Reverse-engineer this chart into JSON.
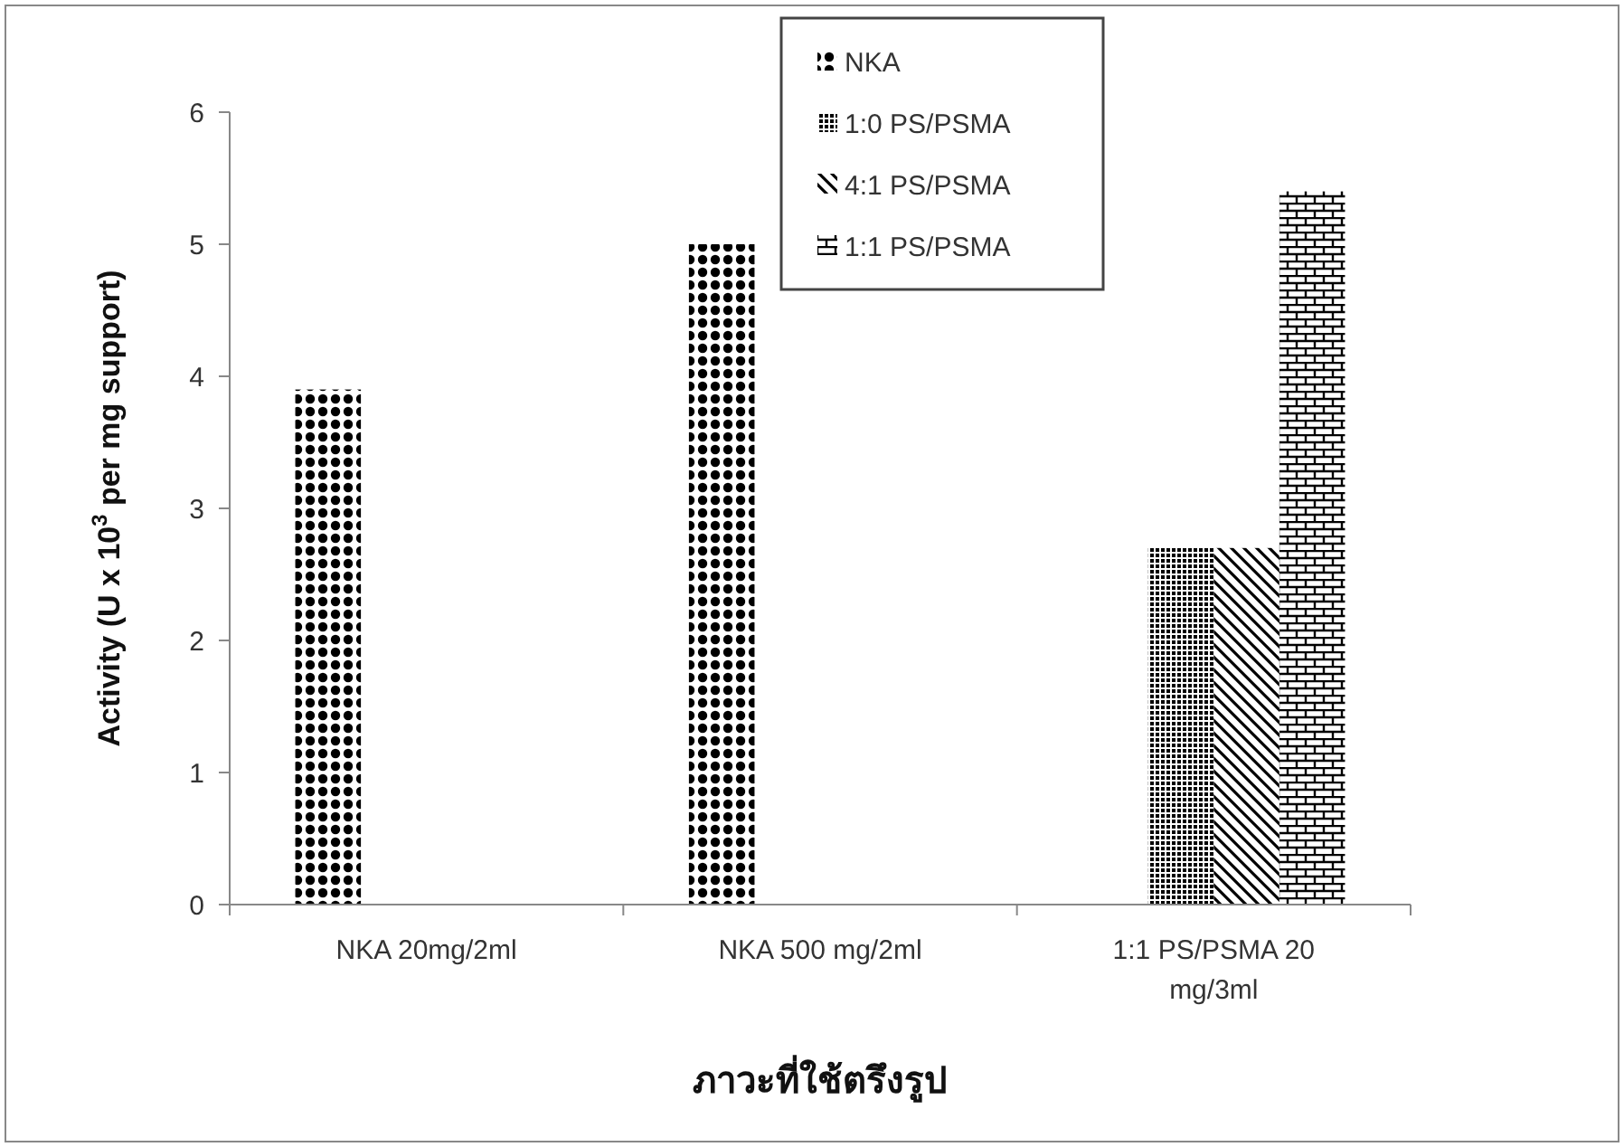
{
  "chart_data": {
    "type": "bar",
    "xlabel": "ภาวะที่ใช้ตรึงรูป",
    "ylabel": "Activity (U x 10$^{3}$ per mg support)",
    "categories": [
      "NKA 20mg/2ml",
      "NKA 500 mg/2ml",
      "1:1 PS/PSMA 20 mg/3ml"
    ],
    "series": [
      {
        "name": "NKA",
        "color": "#000000",
        "values": [
          3.9,
          5.0,
          null
        ]
      },
      {
        "name": "1:0 PS/PSMA",
        "color": "#000000",
        "values": [
          null,
          null,
          2.7
        ]
      },
      {
        "name": "4:1 PS/PSMA",
        "color": "#000000",
        "values": [
          null,
          null,
          2.7
        ]
      },
      {
        "name": "1:1 PS/PSMA",
        "color": "#000000",
        "values": [
          null,
          null,
          5.4
        ]
      }
    ],
    "ylim": [
      0,
      6
    ],
    "yticks": [
      0,
      1,
      2,
      3,
      4,
      5,
      6
    ],
    "grid": false,
    "legend": "top right"
  }
}
